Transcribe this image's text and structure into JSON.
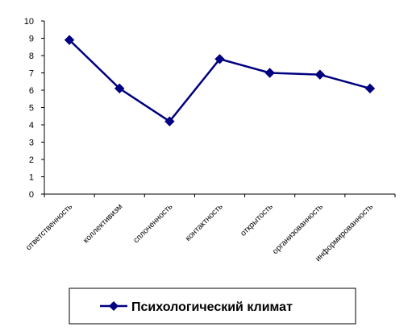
{
  "chart_data": {
    "type": "line",
    "categories": [
      "ответственность",
      "коллективизм",
      "сплоченность",
      "контактность",
      "открытость",
      "организованность",
      "информированность"
    ],
    "series": [
      {
        "name": "Психологический климат",
        "values": [
          8.9,
          6.1,
          4.2,
          7.8,
          7.0,
          6.9,
          6.1
        ],
        "color": "#000080",
        "marker": "diamond"
      }
    ],
    "ylim": [
      0,
      10
    ],
    "yticks": [
      "0",
      "1",
      "2",
      "3",
      "4",
      "5",
      "6",
      "7",
      "8",
      "9",
      "10"
    ],
    "grid": false,
    "legend": "bottom"
  }
}
